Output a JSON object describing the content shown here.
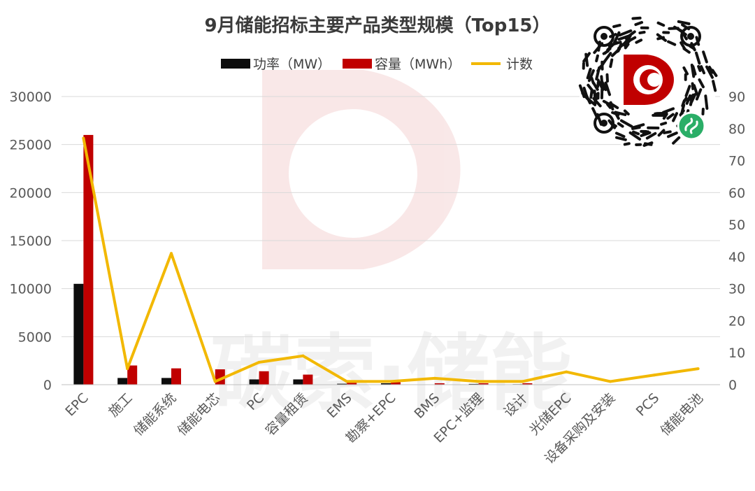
{
  "chart_data": {
    "type": "bar",
    "title": "9月储能招标主要产品类型规模（Top15）",
    "categories": [
      "EPC",
      "施工",
      "储能系统",
      "储能电芯",
      "PC",
      "容量租赁",
      "EMS",
      "勘察+EPC",
      "BMS",
      "EPC+监理",
      "设计",
      "光储EPC",
      "设备采购及安装",
      "PCS",
      "储能电池"
    ],
    "series": [
      {
        "name": "功率（MW）",
        "type": "bar",
        "axis": "left",
        "color": "#0d0d0d",
        "values": [
          10500,
          700,
          700,
          0,
          550,
          550,
          100,
          150,
          0,
          80,
          50,
          0,
          0,
          0,
          0
        ]
      },
      {
        "name": "容量（MWh）",
        "type": "bar",
        "axis": "left",
        "color": "#c00000",
        "values": [
          26000,
          2000,
          1700,
          1600,
          1400,
          1050,
          200,
          250,
          150,
          150,
          150,
          0,
          0,
          0,
          0
        ]
      },
      {
        "name": "计数",
        "type": "line",
        "axis": "right",
        "color": "#f2b800",
        "values": [
          77,
          5,
          41,
          1,
          7,
          9,
          1,
          1,
          2,
          1,
          1,
          4,
          1,
          3,
          5
        ]
      }
    ],
    "ylim": [
      0,
      30000
    ],
    "yticks": [
      0,
      5000,
      10000,
      15000,
      20000,
      25000,
      30000
    ],
    "y2lim": [
      0,
      90
    ],
    "y2ticks": [
      0,
      10,
      20,
      30,
      40,
      50,
      60,
      70,
      80,
      90
    ],
    "grid": true,
    "legend": "top-center",
    "colors": {
      "line_series": "#f2b800",
      "power_series": "#0d0d0d",
      "capacity_series": "#c00000"
    }
  },
  "watermark": {
    "text": "碳索·储能",
    "logo_letter": "D"
  },
  "qr_badge": {
    "logo_letter": "C",
    "accent": "#c00000",
    "badge_color": "#2aae67"
  }
}
